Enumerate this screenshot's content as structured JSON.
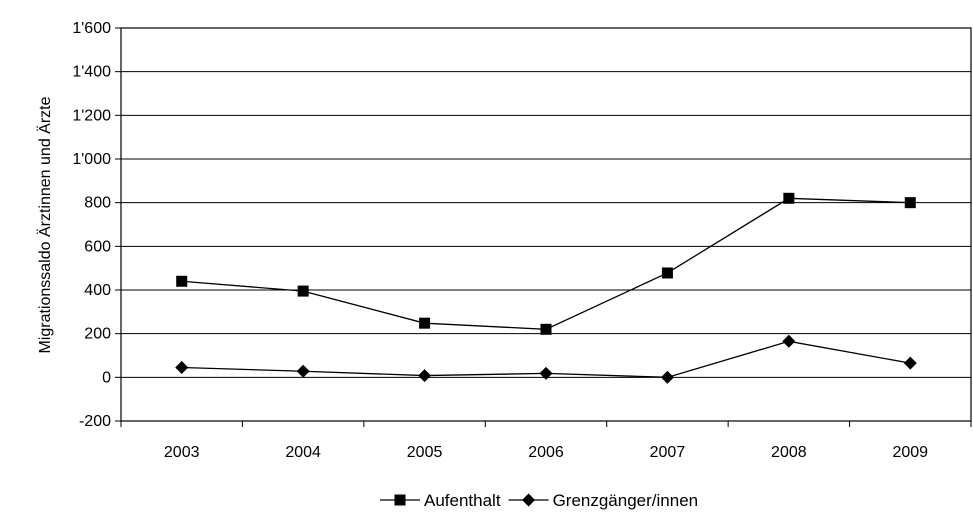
{
  "chart_data": {
    "type": "line",
    "title": "",
    "xlabel": "",
    "ylabel": "Migrationssaldo Ärztinnen und Ärzte",
    "categories": [
      "2003",
      "2004",
      "2005",
      "2006",
      "2007",
      "2008",
      "2009"
    ],
    "ylim": [
      -200,
      1600
    ],
    "yticks": [
      -200,
      0,
      200,
      400,
      600,
      800,
      1000,
      1200,
      1400,
      1600
    ],
    "ytick_labels": [
      "-200",
      "0",
      "200",
      "400",
      "600",
      "800",
      "1'000",
      "1'200",
      "1'400",
      "1'600"
    ],
    "grid": "horizontal",
    "legend_position": "bottom",
    "series": [
      {
        "name": "Aufenthalt",
        "marker": "square",
        "values": [
          440,
          395,
          248,
          220,
          478,
          820,
          800
        ]
      },
      {
        "name": "Grenzgänger/innen",
        "marker": "diamond",
        "values": [
          45,
          28,
          8,
          18,
          0,
          165,
          65
        ]
      }
    ]
  }
}
